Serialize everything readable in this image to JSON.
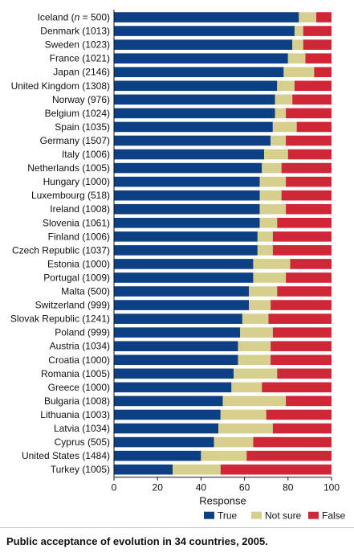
{
  "chart_data": {
    "type": "bar",
    "orientation": "horizontal",
    "stacked": true,
    "title": "",
    "xlabel": "Response",
    "ylabel": "",
    "xlim": [
      0,
      100
    ],
    "xticks": [
      0,
      20,
      40,
      60,
      80,
      100
    ],
    "grid": false,
    "legend": "bottom-right",
    "categories": [
      [
        "Iceland (",
        "n",
        " = 500)"
      ],
      "Denmark (1013)",
      "Sweden (1023)",
      "France (1021)",
      "Japan (2146)",
      "United Kingdom (1308)",
      "Norway (976)",
      "Belgium (1024)",
      "Spain (1035)",
      "Germany (1507)",
      "Italy (1006)",
      "Netherlands (1005)",
      "Hungary (1000)",
      "Luxembourg (518)",
      "Ireland (1008)",
      "Slovenia (1061)",
      "Finland (1006)",
      "Czech Republic (1037)",
      "Estonia (1000)",
      "Portugal (1009)",
      "Malta (500)",
      "Switzerland (999)",
      "Slovak Republic (1241)",
      "Poland (999)",
      "Austria (1034)",
      "Croatia (1000)",
      "Romania (1005)",
      "Greece (1000)",
      "Bulgaria (1008)",
      "Lithuania (1003)",
      "Latvia (1034)",
      "Cyprus (505)",
      "United States (1484)",
      "Turkey (1005)"
    ],
    "series": [
      {
        "name": "True",
        "color": "#0d3f85",
        "values": [
          85,
          83,
          82,
          80,
          78,
          75,
          74,
          74,
          73,
          72,
          69,
          68,
          67,
          67,
          67,
          67,
          66,
          66,
          64,
          64,
          62,
          62,
          59,
          58,
          57,
          57,
          55,
          54,
          50,
          49,
          48,
          46,
          40,
          27
        ]
      },
      {
        "name": "Not sure",
        "color": "#d6cf8e",
        "values": [
          8,
          4,
          5,
          8,
          14,
          8,
          8,
          5,
          11,
          7,
          11,
          9,
          12,
          10,
          12,
          8,
          7,
          7,
          17,
          15,
          13,
          10,
          12,
          15,
          15,
          15,
          20,
          14,
          29,
          21,
          25,
          18,
          21,
          22
        ]
      },
      {
        "name": "False",
        "color": "#cf2638",
        "values": [
          7,
          13,
          13,
          12,
          8,
          17,
          18,
          21,
          16,
          21,
          20,
          23,
          21,
          23,
          21,
          25,
          27,
          27,
          19,
          21,
          25,
          28,
          29,
          27,
          28,
          28,
          25,
          32,
          21,
          30,
          27,
          36,
          39,
          51
        ]
      }
    ]
  },
  "caption": "Public acceptance of evolution in 34 countries, 2005."
}
